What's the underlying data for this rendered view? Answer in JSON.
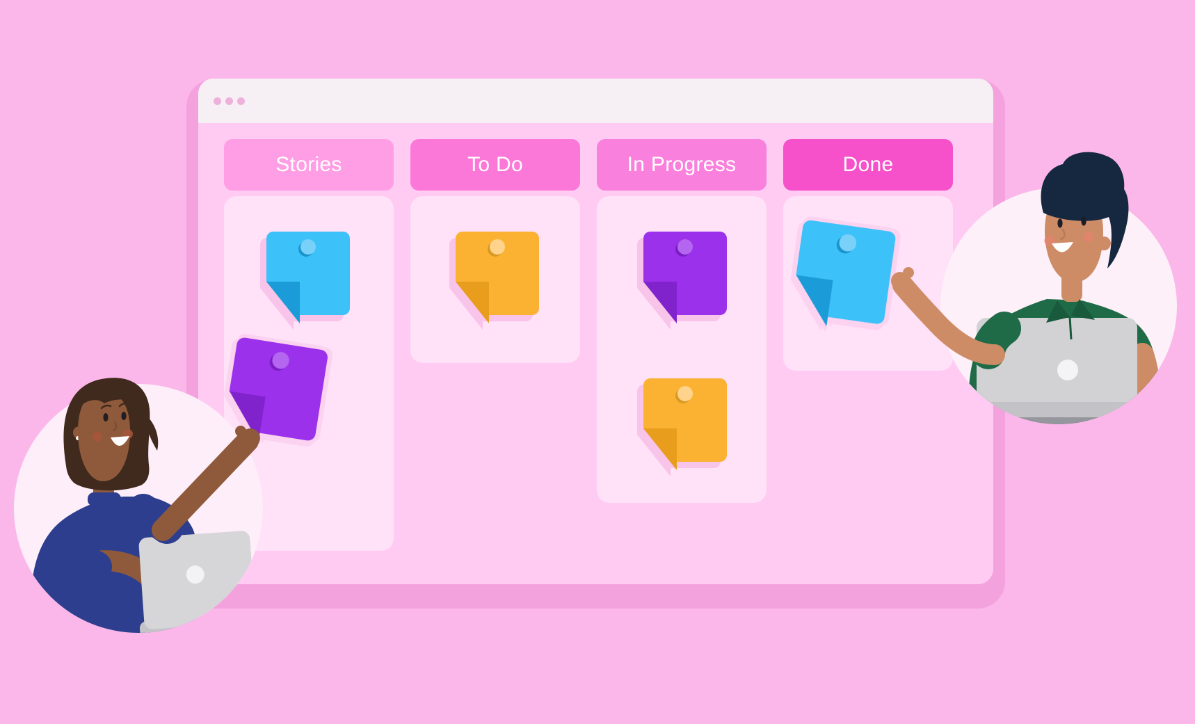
{
  "window": {
    "controls": {
      "dot_count": 3
    }
  },
  "board": {
    "columns": [
      {
        "id": "stories",
        "label": "Stories",
        "header_color": "#ff9de5",
        "notes": [
          {
            "color": "blue"
          },
          {
            "color": "purple",
            "held_by": "woman"
          }
        ]
      },
      {
        "id": "todo",
        "label": "To Do",
        "header_color": "#fb78d9",
        "notes": [
          {
            "color": "yellow"
          }
        ]
      },
      {
        "id": "inprogress",
        "label": "In Progress",
        "header_color": "#f980dc",
        "notes": [
          {
            "color": "purple"
          },
          {
            "color": "yellow"
          }
        ]
      },
      {
        "id": "done",
        "label": "Done",
        "header_color": "#f650ca",
        "notes": [
          {
            "color": "blue",
            "held_by": "man"
          }
        ]
      }
    ]
  },
  "note_styles": {
    "blue": {
      "face": "#3cc1f8",
      "fold": "#1b9cd8",
      "pin": "#79d1fa",
      "pin_shadow": "#1995cc"
    },
    "yellow": {
      "face": "#fbb233",
      "fold": "#e99d1d",
      "pin": "#ffd38c",
      "pin_shadow": "#d99a23"
    },
    "purple": {
      "face": "#9c31eb",
      "fold": "#8123cc",
      "pin": "#b566f1",
      "pin_shadow": "#7a1ec2"
    }
  },
  "people": [
    {
      "id": "woman",
      "holding_note_color": "purple"
    },
    {
      "id": "man",
      "holding_note_color": "blue"
    }
  ],
  "palette": {
    "page_bg": "#fbb7e9",
    "window_shadow": "#f4a2de",
    "window_bg": "#ffcbf2",
    "titlebar_bg": "#f6f0f5",
    "titlebar_dot": "#eeb1dc",
    "column_bg": "#ffe1f8",
    "header_text": "#ffffff",
    "held_note_glow": "#fbd2f0",
    "wm_skin": "#8e5a3b",
    "wm_skin_shade": "#7a4a2e",
    "wm_hair": "#3f2a1d",
    "wm_shirt": "#2e3e8e",
    "wm_blush": "#a9553a",
    "wm_laptop": "#d6d6d8",
    "wm_laptop_edge": "#c4c4c8",
    "wm_laptop_logo": "#f3f3f5",
    "wm_circle": "#fdeef9",
    "mn_skin": "#cd8c66",
    "mn_skin_shade": "#b87a55",
    "mn_hair": "#152840",
    "mn_shirt": "#1f6b48",
    "mn_shirt_dark": "#185a3b",
    "mn_blush": "#e0846d",
    "mn_laptop": "#d2d2d4",
    "mn_laptop_edge": "#c3c3c7",
    "mn_laptop_logo": "#f4f4f6",
    "mn_desk": "#96969e",
    "mn_circle": "#fdf0f9"
  }
}
